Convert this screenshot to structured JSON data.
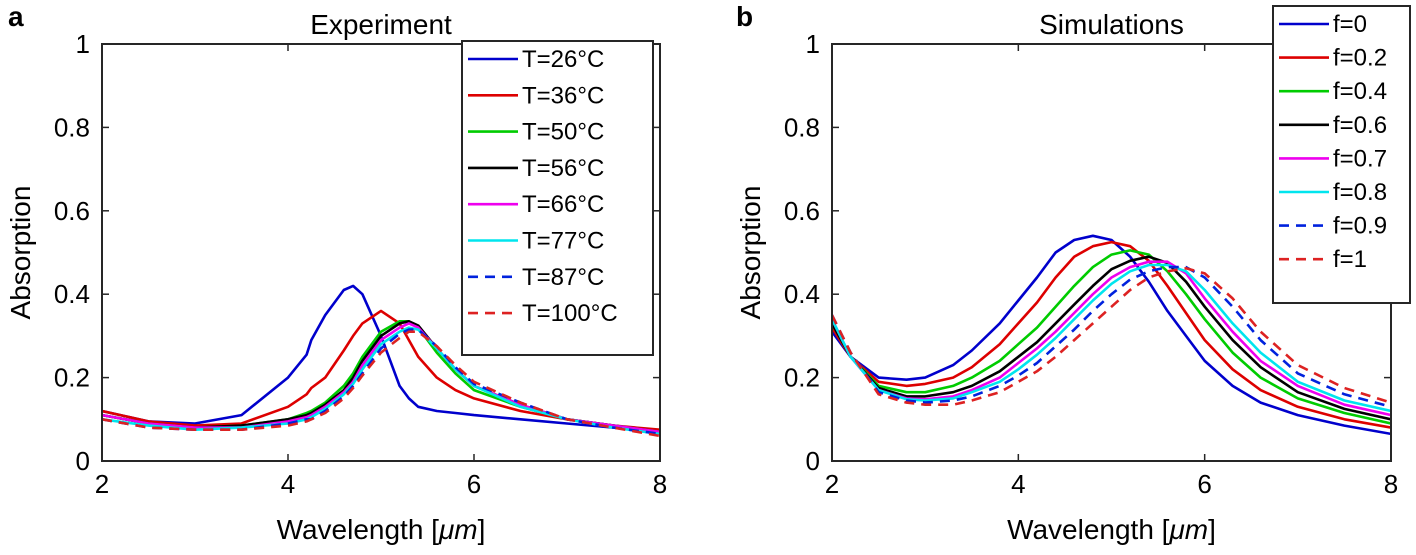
{
  "chart_data": [
    {
      "type": "line",
      "panel_label": "a",
      "title": "Experiment",
      "xlabel": "Wavelength [",
      "xlabel_unit": "μm",
      "xlabel_suffix": "]",
      "ylabel": "Absorption",
      "xlim": [
        2,
        8
      ],
      "ylim": [
        0,
        1
      ],
      "xticks": [
        2,
        4,
        6,
        8
      ],
      "yticks": [
        0,
        0.2,
        0.4,
        0.6,
        0.8,
        1
      ],
      "ytick_labels": [
        "0",
        "0.2",
        "0.4",
        "0.6",
        "0.8",
        "1"
      ],
      "legend_position": "top-right",
      "x": [
        2.0,
        2.5,
        3.0,
        3.5,
        4.0,
        4.2,
        4.25,
        4.4,
        4.6,
        4.7,
        4.8,
        5.0,
        5.2,
        5.3,
        5.4,
        5.6,
        5.8,
        6.0,
        6.5,
        7.0,
        7.5,
        8.0
      ],
      "series": [
        {
          "name": "T=26°C",
          "color": "#0000cc",
          "dash": "solid",
          "values": [
            0.12,
            0.095,
            0.09,
            0.11,
            0.2,
            0.255,
            0.29,
            0.35,
            0.41,
            0.42,
            0.4,
            0.3,
            0.18,
            0.15,
            0.13,
            0.12,
            0.115,
            0.11,
            0.1,
            0.09,
            0.08,
            0.07
          ]
        },
        {
          "name": "T=36°C",
          "color": "#dd0000",
          "dash": "solid",
          "values": [
            0.12,
            0.095,
            0.085,
            0.09,
            0.13,
            0.16,
            0.175,
            0.2,
            0.265,
            0.3,
            0.33,
            0.36,
            0.33,
            0.29,
            0.25,
            0.2,
            0.17,
            0.15,
            0.12,
            0.1,
            0.085,
            0.075
          ]
        },
        {
          "name": "T=50°C",
          "color": "#00cc00",
          "dash": "solid",
          "values": [
            0.11,
            0.09,
            0.08,
            0.085,
            0.1,
            0.115,
            0.12,
            0.14,
            0.18,
            0.21,
            0.25,
            0.31,
            0.335,
            0.335,
            0.32,
            0.26,
            0.21,
            0.17,
            0.13,
            0.1,
            0.085,
            0.07
          ]
        },
        {
          "name": "T=56°C",
          "color": "#000000",
          "dash": "solid",
          "values": [
            0.11,
            0.09,
            0.08,
            0.085,
            0.1,
            0.11,
            0.115,
            0.135,
            0.17,
            0.2,
            0.24,
            0.3,
            0.33,
            0.335,
            0.325,
            0.27,
            0.22,
            0.18,
            0.135,
            0.1,
            0.085,
            0.07
          ]
        },
        {
          "name": "T=66°C",
          "color": "#ee00ee",
          "dash": "solid",
          "values": [
            0.11,
            0.09,
            0.08,
            0.08,
            0.095,
            0.105,
            0.11,
            0.13,
            0.165,
            0.19,
            0.23,
            0.29,
            0.32,
            0.33,
            0.32,
            0.27,
            0.22,
            0.18,
            0.135,
            0.1,
            0.085,
            0.07
          ]
        },
        {
          "name": "T=77°C",
          "color": "#00e5ee",
          "dash": "solid",
          "values": [
            0.1,
            0.085,
            0.075,
            0.08,
            0.09,
            0.1,
            0.105,
            0.125,
            0.16,
            0.185,
            0.22,
            0.28,
            0.31,
            0.32,
            0.315,
            0.27,
            0.22,
            0.18,
            0.13,
            0.1,
            0.08,
            0.065
          ]
        },
        {
          "name": "T=87°C",
          "color": "#0022dd",
          "dash": "dashed",
          "values": [
            0.1,
            0.08,
            0.075,
            0.075,
            0.09,
            0.1,
            0.1,
            0.12,
            0.155,
            0.18,
            0.21,
            0.27,
            0.305,
            0.315,
            0.315,
            0.275,
            0.225,
            0.185,
            0.14,
            0.1,
            0.08,
            0.065
          ]
        },
        {
          "name": "T=100°C",
          "color": "#dd2222",
          "dash": "dashed",
          "values": [
            0.1,
            0.08,
            0.075,
            0.075,
            0.085,
            0.095,
            0.1,
            0.115,
            0.15,
            0.175,
            0.205,
            0.26,
            0.295,
            0.31,
            0.31,
            0.275,
            0.23,
            0.19,
            0.14,
            0.1,
            0.08,
            0.06
          ]
        }
      ]
    },
    {
      "type": "line",
      "panel_label": "b",
      "title": "Simulations",
      "xlabel": "Wavelength [",
      "xlabel_unit": "μm",
      "xlabel_suffix": "]",
      "ylabel": "Absorption",
      "xlim": [
        2,
        8
      ],
      "ylim": [
        0,
        1
      ],
      "xticks": [
        2,
        4,
        6,
        8
      ],
      "yticks": [
        0,
        0.2,
        0.4,
        0.6,
        0.8,
        1
      ],
      "ytick_labels": [
        "0",
        "0.2",
        "0.4",
        "0.6",
        "0.8",
        "1"
      ],
      "legend_position": "top-right (outside)",
      "x": [
        2.0,
        2.2,
        2.5,
        2.8,
        3.0,
        3.3,
        3.5,
        3.8,
        4.0,
        4.2,
        4.4,
        4.6,
        4.8,
        5.0,
        5.2,
        5.4,
        5.6,
        5.8,
        6.0,
        6.3,
        6.6,
        7.0,
        7.5,
        8.0
      ],
      "series": [
        {
          "name": "f=0",
          "color": "#0000cc",
          "dash": "solid",
          "values": [
            0.31,
            0.25,
            0.2,
            0.195,
            0.2,
            0.23,
            0.265,
            0.33,
            0.385,
            0.44,
            0.5,
            0.53,
            0.54,
            0.53,
            0.49,
            0.43,
            0.36,
            0.3,
            0.24,
            0.18,
            0.14,
            0.11,
            0.085,
            0.065
          ]
        },
        {
          "name": "f=0.2",
          "color": "#dd0000",
          "dash": "solid",
          "values": [
            0.32,
            0.25,
            0.19,
            0.18,
            0.185,
            0.2,
            0.225,
            0.28,
            0.33,
            0.38,
            0.44,
            0.49,
            0.515,
            0.525,
            0.515,
            0.48,
            0.42,
            0.355,
            0.29,
            0.22,
            0.17,
            0.13,
            0.1,
            0.08
          ]
        },
        {
          "name": "f=0.4",
          "color": "#00cc00",
          "dash": "solid",
          "values": [
            0.33,
            0.25,
            0.18,
            0.165,
            0.165,
            0.18,
            0.2,
            0.24,
            0.28,
            0.32,
            0.37,
            0.42,
            0.465,
            0.495,
            0.505,
            0.495,
            0.455,
            0.4,
            0.34,
            0.26,
            0.2,
            0.15,
            0.115,
            0.09
          ]
        },
        {
          "name": "f=0.6",
          "color": "#000000",
          "dash": "solid",
          "values": [
            0.33,
            0.25,
            0.175,
            0.155,
            0.155,
            0.165,
            0.18,
            0.215,
            0.25,
            0.285,
            0.33,
            0.375,
            0.42,
            0.46,
            0.48,
            0.49,
            0.475,
            0.43,
            0.37,
            0.29,
            0.225,
            0.165,
            0.125,
            0.1
          ]
        },
        {
          "name": "f=0.7",
          "color": "#ee00ee",
          "dash": "solid",
          "values": [
            0.34,
            0.25,
            0.17,
            0.15,
            0.148,
            0.155,
            0.17,
            0.2,
            0.235,
            0.27,
            0.31,
            0.355,
            0.4,
            0.44,
            0.465,
            0.478,
            0.478,
            0.45,
            0.39,
            0.31,
            0.24,
            0.18,
            0.135,
            0.11
          ]
        },
        {
          "name": "f=0.8",
          "color": "#00e5ee",
          "dash": "solid",
          "values": [
            0.34,
            0.25,
            0.17,
            0.148,
            0.145,
            0.15,
            0.165,
            0.19,
            0.22,
            0.255,
            0.295,
            0.34,
            0.385,
            0.425,
            0.455,
            0.47,
            0.47,
            0.455,
            0.41,
            0.33,
            0.26,
            0.19,
            0.145,
            0.12
          ]
        },
        {
          "name": "f=0.9",
          "color": "#0022dd",
          "dash": "dashed",
          "values": [
            0.35,
            0.26,
            0.165,
            0.145,
            0.14,
            0.145,
            0.155,
            0.18,
            0.205,
            0.235,
            0.275,
            0.315,
            0.36,
            0.4,
            0.435,
            0.455,
            0.465,
            0.465,
            0.44,
            0.37,
            0.29,
            0.21,
            0.16,
            0.13
          ]
        },
        {
          "name": "f=1",
          "color": "#dd2222",
          "dash": "dashed",
          "values": [
            0.35,
            0.26,
            0.16,
            0.14,
            0.135,
            0.135,
            0.145,
            0.165,
            0.19,
            0.215,
            0.25,
            0.29,
            0.33,
            0.37,
            0.41,
            0.44,
            0.455,
            0.462,
            0.45,
            0.39,
            0.31,
            0.23,
            0.175,
            0.14
          ]
        }
      ]
    }
  ]
}
